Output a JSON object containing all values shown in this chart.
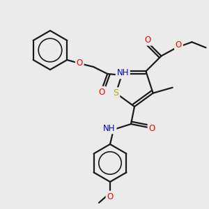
{
  "bg_color": "#ebebeb",
  "bond_color": "#1a1a1a",
  "bond_width": 1.6,
  "figsize": [
    3.0,
    3.0
  ],
  "dpi": 100,
  "atom_colors": {
    "O": "#ff0000",
    "N": "#0000cc",
    "S": "#aaaa00",
    "C": "#1a1a1a",
    "H": "#4a9090"
  }
}
